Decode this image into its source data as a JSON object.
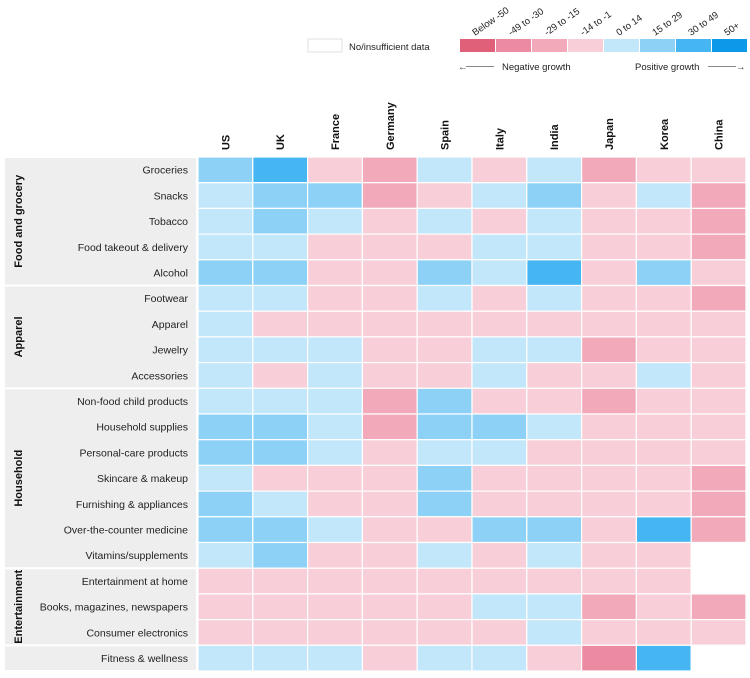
{
  "chart_data": {
    "type": "heatmap",
    "columns": [
      "US",
      "UK",
      "France",
      "Germany",
      "Spain",
      "Italy",
      "India",
      "Japan",
      "Korea",
      "China"
    ],
    "groups": [
      {
        "name": "Food and grocery",
        "rows": [
          {
            "label": "Groceries",
            "values": [
              6,
              7,
              4,
              3,
              5,
              4,
              5,
              3,
              4,
              4
            ]
          },
          {
            "label": "Snacks",
            "values": [
              5,
              6,
              6,
              3,
              4,
              5,
              6,
              4,
              5,
              3
            ]
          },
          {
            "label": "Tobacco",
            "values": [
              5,
              6,
              5,
              4,
              5,
              4,
              5,
              4,
              4,
              3
            ]
          },
          {
            "label": "Food takeout & delivery",
            "values": [
              5,
              5,
              4,
              4,
              4,
              5,
              5,
              4,
              4,
              3
            ]
          },
          {
            "label": "Alcohol",
            "values": [
              6,
              6,
              4,
              4,
              6,
              5,
              7,
              4,
              6,
              4
            ]
          }
        ]
      },
      {
        "name": "Apparel",
        "rows": [
          {
            "label": "Footwear",
            "values": [
              5,
              5,
              4,
              4,
              5,
              4,
              5,
              4,
              4,
              3
            ]
          },
          {
            "label": "Apparel",
            "values": [
              5,
              4,
              4,
              4,
              4,
              4,
              4,
              4,
              4,
              4
            ]
          },
          {
            "label": "Jewelry",
            "values": [
              5,
              5,
              5,
              4,
              4,
              5,
              5,
              3,
              4,
              4
            ]
          },
          {
            "label": "Accessories",
            "values": [
              5,
              4,
              5,
              4,
              4,
              5,
              4,
              4,
              5,
              4
            ]
          }
        ]
      },
      {
        "name": "Household",
        "rows": [
          {
            "label": "Non-food child products",
            "values": [
              5,
              5,
              5,
              3,
              6,
              4,
              4,
              3,
              4,
              4
            ]
          },
          {
            "label": "Household supplies",
            "values": [
              6,
              6,
              5,
              3,
              6,
              6,
              5,
              4,
              4,
              4
            ]
          },
          {
            "label": "Personal-care products",
            "values": [
              6,
              6,
              5,
              4,
              5,
              5,
              4,
              4,
              4,
              4
            ]
          },
          {
            "label": "Skincare & makeup",
            "values": [
              5,
              4,
              4,
              4,
              6,
              4,
              4,
              4,
              4,
              3
            ]
          },
          {
            "label": "Furnishing & appliances",
            "values": [
              6,
              5,
              4,
              4,
              6,
              4,
              4,
              4,
              4,
              3
            ]
          },
          {
            "label": "Over-the-counter medicine",
            "values": [
              6,
              6,
              5,
              4,
              4,
              6,
              6,
              4,
              7,
              3
            ]
          },
          {
            "label": "Vitamins/supplements",
            "values": [
              5,
              6,
              4,
              4,
              5,
              4,
              5,
              4,
              4,
              0
            ]
          }
        ]
      },
      {
        "name": "Entertainment",
        "rows": [
          {
            "label": "Entertainment at home",
            "values": [
              4,
              4,
              4,
              4,
              4,
              4,
              4,
              4,
              4,
              0
            ]
          },
          {
            "label": "Books, magazines, newspapers",
            "values": [
              4,
              4,
              4,
              4,
              4,
              5,
              5,
              3,
              4,
              3
            ]
          },
          {
            "label": "Consumer electronics",
            "values": [
              4,
              4,
              4,
              4,
              4,
              4,
              5,
              4,
              4,
              4
            ]
          }
        ]
      },
      {
        "name": "",
        "rows": [
          {
            "label": "Fitness & wellness",
            "values": [
              5,
              5,
              5,
              4,
              5,
              5,
              4,
              2,
              7,
              0
            ]
          }
        ]
      }
    ],
    "legend": {
      "no_data_label": "No/insufficient data",
      "bins": [
        "Below -50",
        "-49 to -30",
        "-29 to -15",
        "-14 to -1",
        "0 to 14",
        "15 to 29",
        "30 to 49",
        "50+"
      ],
      "negative_label": "Negative growth",
      "positive_label": "Positive growth",
      "arrow_left": "←",
      "arrow_right": "→"
    }
  },
  "colors": {
    "no_data": "#ffffff",
    "bins": [
      "#e0607a",
      "#eb8aa1",
      "#f2a9ba",
      "#f8cfd8",
      "#c2e7fb",
      "#8dd1f7",
      "#45b6f2",
      "#0d99ea"
    ],
    "grid": "#ffffff",
    "band": "#eeeeee"
  }
}
